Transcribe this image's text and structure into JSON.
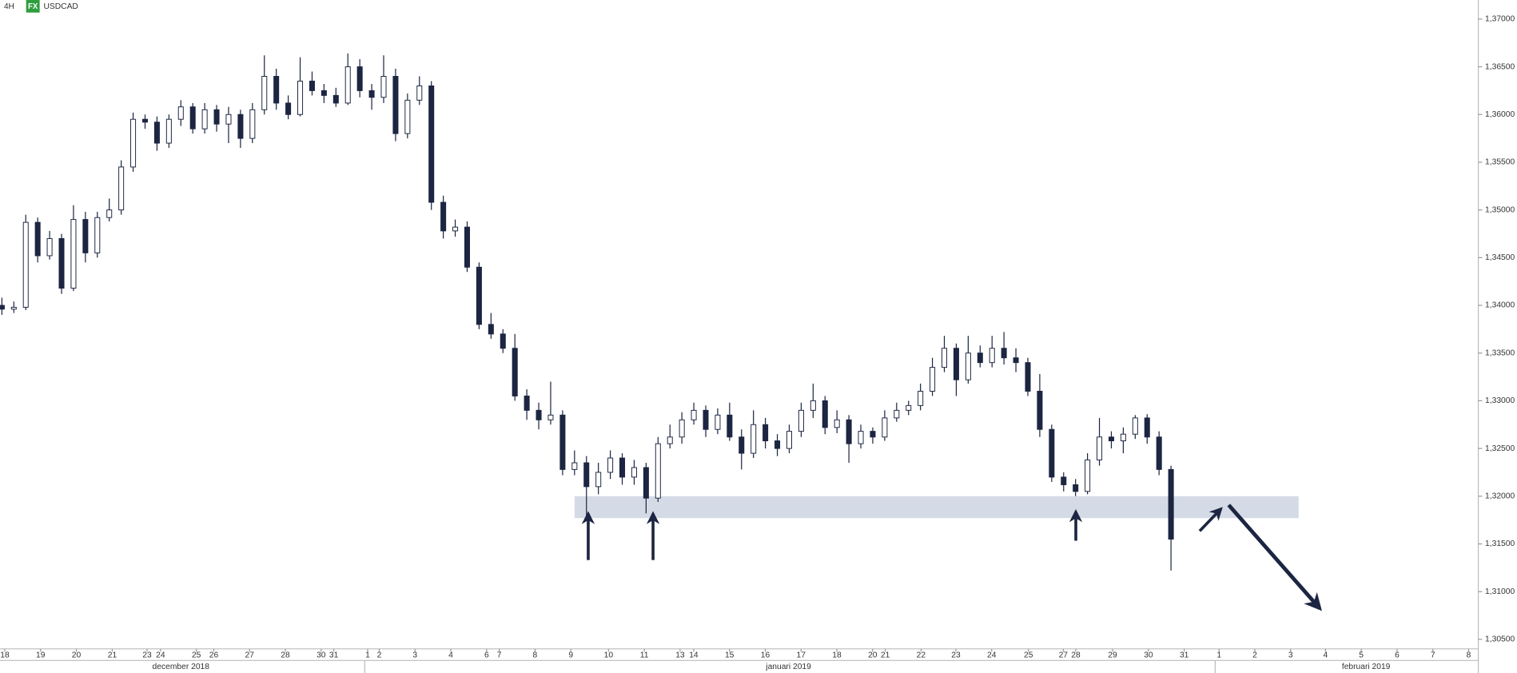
{
  "chart_data": {
    "type": "candlestick",
    "title": "USDCAD",
    "timeframe": "4H",
    "badge": "FX",
    "up_color": "#ffffff",
    "down_color": "#1c2541",
    "line_color": "#1c2541",
    "badge_color": "#2e9e3e",
    "zone_color": "#d5dbe6",
    "xlim": [
      -0.16,
      123.76
    ],
    "ylim": [
      1.304,
      1.372
    ],
    "yticks": [
      {
        "value": 1.37,
        "label": "1,37000"
      },
      {
        "value": 1.365,
        "label": "1,36500"
      },
      {
        "value": 1.36,
        "label": "1,36000"
      },
      {
        "value": 1.355,
        "label": "1,35500"
      },
      {
        "value": 1.35,
        "label": "1,35000"
      },
      {
        "value": 1.345,
        "label": "1,34500"
      },
      {
        "value": 1.34,
        "label": "1,34000"
      },
      {
        "value": 1.335,
        "label": "1,33500"
      },
      {
        "value": 1.33,
        "label": "1,33000"
      },
      {
        "value": 1.325,
        "label": "1,32500"
      },
      {
        "value": 1.32,
        "label": "1,32000"
      },
      {
        "value": 1.315,
        "label": "1,31500"
      },
      {
        "value": 1.31,
        "label": "1,31000"
      },
      {
        "value": 1.305,
        "label": "1,30500"
      }
    ],
    "xticks": [
      {
        "value": 0.24,
        "label": "18"
      },
      {
        "value": 3.24,
        "label": "19"
      },
      {
        "value": 6.24,
        "label": "20"
      },
      {
        "value": 9.25,
        "label": "21"
      },
      {
        "value": 12.17,
        "label": "23"
      },
      {
        "value": 13.3,
        "label": "24"
      },
      {
        "value": 16.3,
        "label": "25"
      },
      {
        "value": 17.76,
        "label": "26"
      },
      {
        "value": 20.76,
        "label": "27"
      },
      {
        "value": 23.76,
        "label": "28"
      },
      {
        "value": 26.76,
        "label": "30"
      },
      {
        "value": 27.82,
        "label": "31"
      },
      {
        "value": 30.66,
        "label": "1"
      },
      {
        "value": 31.63,
        "label": "2"
      },
      {
        "value": 34.63,
        "label": "3"
      },
      {
        "value": 37.63,
        "label": "4"
      },
      {
        "value": 40.63,
        "label": "6"
      },
      {
        "value": 41.69,
        "label": "7"
      },
      {
        "value": 44.69,
        "label": "8"
      },
      {
        "value": 47.69,
        "label": "9"
      },
      {
        "value": 50.85,
        "label": "10"
      },
      {
        "value": 53.85,
        "label": "11"
      },
      {
        "value": 56.85,
        "label": "13"
      },
      {
        "value": 57.99,
        "label": "14"
      },
      {
        "value": 60.99,
        "label": "15"
      },
      {
        "value": 63.99,
        "label": "16"
      },
      {
        "value": 66.99,
        "label": "17"
      },
      {
        "value": 69.99,
        "label": "18"
      },
      {
        "value": 72.99,
        "label": "20"
      },
      {
        "value": 74.05,
        "label": "21"
      },
      {
        "value": 77.05,
        "label": "22"
      },
      {
        "value": 79.97,
        "label": "23"
      },
      {
        "value": 82.97,
        "label": "24"
      },
      {
        "value": 86.05,
        "label": "25"
      },
      {
        "value": 88.97,
        "label": "27"
      },
      {
        "value": 90.02,
        "label": "28"
      },
      {
        "value": 93.1,
        "label": "29"
      },
      {
        "value": 96.11,
        "label": "30"
      },
      {
        "value": 99.11,
        "label": "31"
      },
      {
        "value": 102.03,
        "label": "1"
      },
      {
        "value": 105.03,
        "label": "2"
      },
      {
        "value": 108.03,
        "label": "3"
      },
      {
        "value": 110.95,
        "label": "4"
      },
      {
        "value": 113.95,
        "label": "5"
      },
      {
        "value": 116.95,
        "label": "6"
      },
      {
        "value": 119.95,
        "label": "7"
      },
      {
        "value": 122.95,
        "label": "8"
      }
    ],
    "months": [
      {
        "value": 15.0,
        "label": "december 2018"
      },
      {
        "value": 65.94,
        "label": "januari 2019"
      },
      {
        "value": 114.35,
        "label": "februari 2019"
      }
    ],
    "zone": {
      "x": [
        48.0,
        108.7
      ],
      "y": [
        1.3177,
        1.32
      ]
    },
    "x": [
      0,
      1,
      2,
      3,
      4,
      5,
      6,
      7,
      8,
      9,
      10,
      11,
      12,
      13,
      14,
      15,
      16,
      17,
      18,
      19,
      20,
      21,
      22,
      23,
      24,
      25,
      26,
      27,
      28,
      29,
      30,
      31,
      32,
      33,
      34,
      35,
      36,
      37,
      38,
      39,
      40,
      41,
      42,
      43,
      44,
      45,
      46,
      47,
      48,
      49,
      50,
      51,
      52,
      53,
      54,
      55,
      56,
      57,
      58,
      59,
      60,
      61,
      62,
      63,
      64,
      65,
      66,
      67,
      68,
      69,
      70,
      71,
      72,
      73,
      74,
      75,
      76,
      77,
      78,
      79,
      80,
      81,
      82,
      83,
      84,
      85,
      86,
      87,
      88,
      89,
      90,
      91,
      92,
      93,
      94,
      95,
      96,
      97,
      98
    ],
    "ohlc": [
      [
        1.34,
        1.3408,
        1.339,
        1.3396
      ],
      [
        1.3396,
        1.3404,
        1.3392,
        1.3398
      ],
      [
        1.3398,
        1.3495,
        1.3395,
        1.3487
      ],
      [
        1.3487,
        1.3492,
        1.3445,
        1.3452
      ],
      [
        1.3452,
        1.3478,
        1.3448,
        1.347
      ],
      [
        1.347,
        1.3475,
        1.3412,
        1.3418
      ],
      [
        1.3418,
        1.3505,
        1.3415,
        1.349
      ],
      [
        1.349,
        1.3498,
        1.3445,
        1.3455
      ],
      [
        1.3455,
        1.3498,
        1.345,
        1.3492
      ],
      [
        1.3492,
        1.3512,
        1.3488,
        1.35
      ],
      [
        1.35,
        1.3552,
        1.3495,
        1.3545
      ],
      [
        1.3545,
        1.3602,
        1.354,
        1.3595
      ],
      [
        1.3595,
        1.36,
        1.3585,
        1.3592
      ],
      [
        1.3592,
        1.3598,
        1.3562,
        1.357
      ],
      [
        1.357,
        1.36,
        1.3565,
        1.3595
      ],
      [
        1.3595,
        1.3615,
        1.3588,
        1.3608
      ],
      [
        1.3608,
        1.3612,
        1.358,
        1.3585
      ],
      [
        1.3585,
        1.3612,
        1.358,
        1.3605
      ],
      [
        1.3605,
        1.361,
        1.3582,
        1.359
      ],
      [
        1.359,
        1.3608,
        1.357,
        1.36
      ],
      [
        1.36,
        1.3605,
        1.3565,
        1.3575
      ],
      [
        1.3575,
        1.3612,
        1.357,
        1.3605
      ],
      [
        1.3605,
        1.3662,
        1.36,
        1.364
      ],
      [
        1.364,
        1.3648,
        1.3605,
        1.3612
      ],
      [
        1.3612,
        1.362,
        1.3595,
        1.36
      ],
      [
        1.36,
        1.366,
        1.3598,
        1.3635
      ],
      [
        1.3635,
        1.3645,
        1.362,
        1.3625
      ],
      [
        1.3625,
        1.3632,
        1.3612,
        1.362
      ],
      [
        1.362,
        1.3628,
        1.3608,
        1.3612
      ],
      [
        1.3612,
        1.3664,
        1.361,
        1.365
      ],
      [
        1.365,
        1.3658,
        1.3618,
        1.3625
      ],
      [
        1.3625,
        1.3632,
        1.3605,
        1.3618
      ],
      [
        1.3618,
        1.3662,
        1.3612,
        1.364
      ],
      [
        1.364,
        1.3648,
        1.3572,
        1.358
      ],
      [
        1.358,
        1.3622,
        1.3575,
        1.3615
      ],
      [
        1.3615,
        1.364,
        1.361,
        1.363
      ],
      [
        1.363,
        1.3635,
        1.35,
        1.3508
      ],
      [
        1.3508,
        1.3515,
        1.347,
        1.3478
      ],
      [
        1.3478,
        1.349,
        1.3472,
        1.3482
      ],
      [
        1.3482,
        1.3488,
        1.3435,
        1.344
      ],
      [
        1.344,
        1.3445,
        1.3375,
        1.338
      ],
      [
        1.338,
        1.3392,
        1.3365,
        1.337
      ],
      [
        1.337,
        1.3375,
        1.335,
        1.3355
      ],
      [
        1.3355,
        1.337,
        1.33,
        1.3305
      ],
      [
        1.3305,
        1.3312,
        1.328,
        1.329
      ],
      [
        1.329,
        1.3298,
        1.327,
        1.328
      ],
      [
        1.328,
        1.332,
        1.3275,
        1.3285
      ],
      [
        1.3285,
        1.329,
        1.3222,
        1.3228
      ],
      [
        1.3228,
        1.3248,
        1.3222,
        1.3235
      ],
      [
        1.3235,
        1.3242,
        1.3178,
        1.321
      ],
      [
        1.321,
        1.3235,
        1.3202,
        1.3225
      ],
      [
        1.3225,
        1.3248,
        1.3218,
        1.324
      ],
      [
        1.324,
        1.3245,
        1.3212,
        1.322
      ],
      [
        1.322,
        1.3238,
        1.3212,
        1.323
      ],
      [
        1.323,
        1.3235,
        1.3182,
        1.3198
      ],
      [
        1.3198,
        1.3262,
        1.3194,
        1.3255
      ],
      [
        1.3255,
        1.3275,
        1.325,
        1.3262
      ],
      [
        1.3262,
        1.3288,
        1.3255,
        1.328
      ],
      [
        1.328,
        1.3298,
        1.3275,
        1.329
      ],
      [
        1.329,
        1.3295,
        1.3262,
        1.327
      ],
      [
        1.327,
        1.3292,
        1.3265,
        1.3285
      ],
      [
        1.3285,
        1.3298,
        1.3258,
        1.3262
      ],
      [
        1.3262,
        1.327,
        1.3228,
        1.3245
      ],
      [
        1.3245,
        1.329,
        1.324,
        1.3275
      ],
      [
        1.3275,
        1.3282,
        1.325,
        1.3258
      ],
      [
        1.3258,
        1.3265,
        1.3242,
        1.325
      ],
      [
        1.325,
        1.3275,
        1.3245,
        1.3268
      ],
      [
        1.3268,
        1.3298,
        1.3262,
        1.329
      ],
      [
        1.329,
        1.3318,
        1.3282,
        1.33
      ],
      [
        1.33,
        1.3305,
        1.3265,
        1.3272
      ],
      [
        1.3272,
        1.329,
        1.3266,
        1.328
      ],
      [
        1.328,
        1.3285,
        1.3235,
        1.3255
      ],
      [
        1.3255,
        1.3275,
        1.325,
        1.3268
      ],
      [
        1.3268,
        1.3272,
        1.3255,
        1.3262
      ],
      [
        1.3262,
        1.329,
        1.3258,
        1.3282
      ],
      [
        1.3282,
        1.3298,
        1.3278,
        1.329
      ],
      [
        1.329,
        1.33,
        1.3285,
        1.3295
      ],
      [
        1.3295,
        1.3318,
        1.329,
        1.331
      ],
      [
        1.331,
        1.3345,
        1.3305,
        1.3335
      ],
      [
        1.3335,
        1.3368,
        1.333,
        1.3355
      ],
      [
        1.3355,
        1.336,
        1.3305,
        1.3322
      ],
      [
        1.3322,
        1.3368,
        1.3318,
        1.335
      ],
      [
        1.335,
        1.3358,
        1.3335,
        1.334
      ],
      [
        1.334,
        1.3368,
        1.3335,
        1.3355
      ],
      [
        1.3355,
        1.3372,
        1.3338,
        1.3345
      ],
      [
        1.3345,
        1.3355,
        1.333,
        1.334
      ],
      [
        1.334,
        1.3345,
        1.3305,
        1.331
      ],
      [
        1.331,
        1.3328,
        1.3262,
        1.327
      ],
      [
        1.327,
        1.3275,
        1.3215,
        1.322
      ],
      [
        1.322,
        1.3225,
        1.3205,
        1.3212
      ],
      [
        1.3212,
        1.3218,
        1.32,
        1.3205
      ],
      [
        1.3205,
        1.3245,
        1.3202,
        1.3238
      ],
      [
        1.3238,
        1.3282,
        1.3232,
        1.3262
      ],
      [
        1.3262,
        1.3268,
        1.325,
        1.3258
      ],
      [
        1.3258,
        1.3272,
        1.3245,
        1.3265
      ],
      [
        1.3265,
        1.3285,
        1.326,
        1.3282
      ],
      [
        1.3282,
        1.3286,
        1.3255,
        1.3262
      ],
      [
        1.3262,
        1.3268,
        1.3222,
        1.3228
      ],
      [
        1.3228,
        1.3232,
        1.3122,
        1.3155
      ]
    ]
  }
}
